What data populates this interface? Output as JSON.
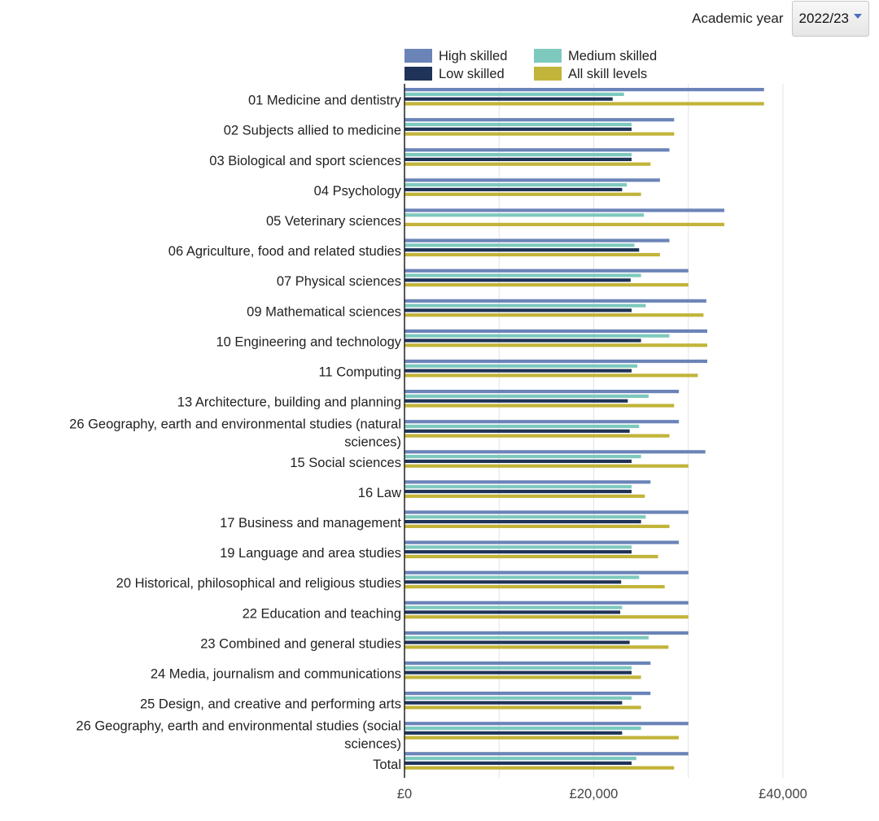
{
  "controls": {
    "year_label": "Academic year",
    "year_value": "2022/23"
  },
  "colors": {
    "high": "#6b84b8",
    "medium": "#7ec9be",
    "low": "#1f3358",
    "all": "#c2b43a",
    "grid": "#e3e3e3",
    "axis": "#222222"
  },
  "chart_data": {
    "type": "bar",
    "orientation": "horizontal",
    "title": "",
    "xlabel": "",
    "ylabel": "",
    "xlim": [
      0,
      43000
    ],
    "x_ticks": [
      0,
      20000,
      40000
    ],
    "x_tick_labels": [
      "£0",
      "£20,000",
      "£40,000"
    ],
    "grid": true,
    "legend_position": "top",
    "categories": [
      "01 Medicine and dentistry",
      "02 Subjects allied to medicine",
      "03 Biological and sport sciences",
      "04 Psychology",
      "05 Veterinary sciences",
      "06 Agriculture, food and related studies",
      "07 Physical sciences",
      "09 Mathematical sciences",
      "10 Engineering and technology",
      "11 Computing",
      "13 Architecture, building and planning",
      "26 Geography, earth and environmental studies (natural sciences)",
      "15 Social sciences",
      "16 Law",
      "17 Business and management",
      "19 Language and area studies",
      "20 Historical, philosophical and religious studies",
      "22 Education and teaching",
      "23 Combined and general studies",
      "24 Media, journalism and communications",
      "25 Design, and creative and performing arts",
      "26 Geography, earth and environmental studies (social sciences)",
      "Total"
    ],
    "category_lines": [
      [
        "01 Medicine and dentistry"
      ],
      [
        "02 Subjects allied to medicine"
      ],
      [
        "03 Biological and sport sciences"
      ],
      [
        "04 Psychology"
      ],
      [
        "05 Veterinary sciences"
      ],
      [
        "06 Agriculture, food and related studies"
      ],
      [
        "07 Physical sciences"
      ],
      [
        "09 Mathematical sciences"
      ],
      [
        "10 Engineering and technology"
      ],
      [
        "11 Computing"
      ],
      [
        "13 Architecture, building and planning"
      ],
      [
        "26 Geography, earth and environmental studies (natural",
        "sciences)"
      ],
      [
        "15 Social sciences"
      ],
      [
        "16 Law"
      ],
      [
        "17 Business and management"
      ],
      [
        "19 Language and area studies"
      ],
      [
        "20 Historical, philosophical and religious studies"
      ],
      [
        "22 Education and teaching"
      ],
      [
        "23 Combined and general studies"
      ],
      [
        "24 Media, journalism and communications"
      ],
      [
        "25 Design, and creative and performing arts"
      ],
      [
        "26 Geography, earth and environmental studies (social",
        "sciences)"
      ],
      [
        "Total"
      ]
    ],
    "series": [
      {
        "key": "high",
        "name": "High skilled",
        "values": [
          38000,
          28500,
          28000,
          27000,
          33800,
          28000,
          30000,
          31900,
          32000,
          32000,
          29000,
          29000,
          31800,
          26000,
          30000,
          29000,
          30000,
          30000,
          30000,
          26000,
          26000,
          30000,
          30000
        ]
      },
      {
        "key": "medium",
        "name": "Medium skilled",
        "values": [
          23200,
          24000,
          24000,
          23500,
          25300,
          24300,
          25000,
          25500,
          28000,
          24600,
          25800,
          24800,
          25000,
          24000,
          25500,
          24000,
          24800,
          23000,
          25800,
          24000,
          24000,
          25000,
          24500
        ]
      },
      {
        "key": "low",
        "name": "Low skilled",
        "values": [
          22000,
          24000,
          24000,
          23000,
          null,
          24800,
          23900,
          24000,
          25000,
          24000,
          23600,
          23800,
          24000,
          24000,
          25000,
          24000,
          22900,
          22800,
          23800,
          24000,
          23000,
          23000,
          24000
        ]
      },
      {
        "key": "all",
        "name": "All skill levels",
        "values": [
          38000,
          28500,
          26000,
          25000,
          33800,
          27000,
          30000,
          31600,
          32000,
          31000,
          28500,
          28000,
          30000,
          25400,
          28000,
          26800,
          27500,
          30000,
          27900,
          25000,
          25000,
          29000,
          28500
        ]
      }
    ]
  }
}
